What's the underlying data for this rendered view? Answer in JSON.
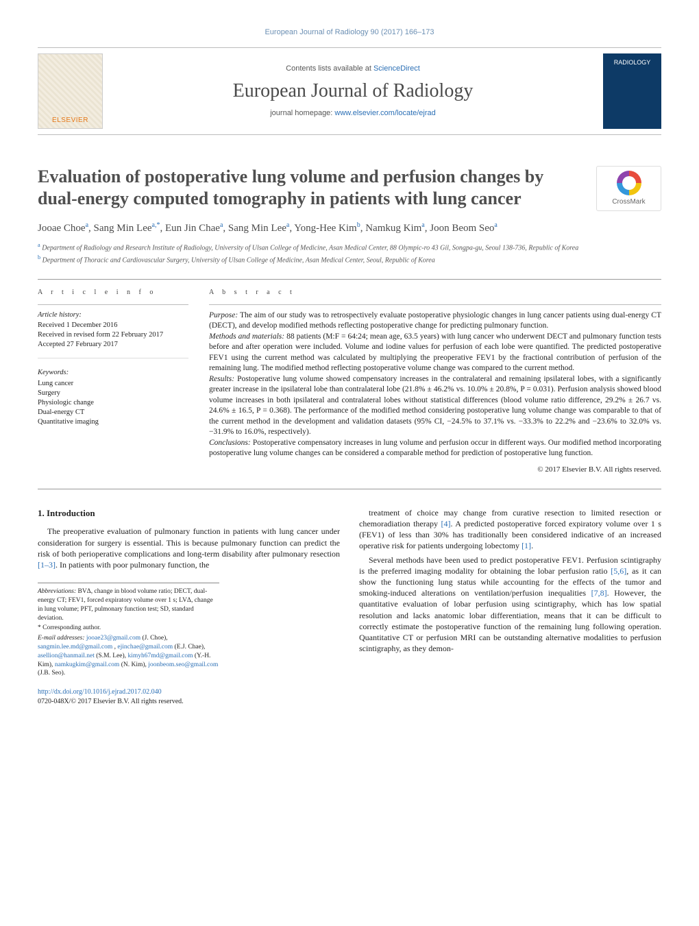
{
  "running_head": "European Journal of Radiology 90 (2017) 166–173",
  "masthead": {
    "publisher_logo_label": "ELSEVIER",
    "contents_prefix": "Contents lists available at ",
    "contents_link": "ScienceDirect",
    "journal_name": "European Journal of Radiology",
    "homepage_prefix": "journal homepage: ",
    "homepage_link": "www.elsevier.com/locate/ejrad",
    "cover_label": "RADIOLOGY"
  },
  "crossmark_label": "CrossMark",
  "title": "Evaluation of postoperative lung volume and perfusion changes by dual-energy computed tomography in patients with lung cancer",
  "authors_html": "Jooae Choe<sup>a</sup>, Sang Min Lee<sup>a,*</sup>, Eun Jin Chae<sup>a</sup>, Sang Min Lee<sup>a</sup>, Yong-Hee Kim<sup>b</sup>, Namkug Kim<sup>a</sup>, Joon Beom Seo<sup>a</sup>",
  "affiliations": [
    {
      "sup": "a",
      "text": "Department of Radiology and Research Institute of Radiology, University of Ulsan College of Medicine, Asan Medical Center, 88 Olympic-ro 43 Gil, Songpa-gu, Seoul 138-736, Republic of Korea"
    },
    {
      "sup": "b",
      "text": "Department of Thoracic and Cardiovascular Surgery, University of Ulsan College of Medicine, Asan Medical Center, Seoul, Republic of Korea"
    }
  ],
  "article_info": {
    "heading": "a r t i c l e   i n f o",
    "history_head": "Article history:",
    "history": [
      "Received 1 December 2016",
      "Received in revised form 22 February 2017",
      "Accepted 27 February 2017"
    ],
    "keywords_head": "Keywords:",
    "keywords": [
      "Lung cancer",
      "Surgery",
      "Physiologic change",
      "Dual-energy CT",
      "Quantitative imaging"
    ]
  },
  "abstract": {
    "heading": "a b s t r a c t",
    "paragraphs": [
      {
        "label": "Purpose:",
        "text": "The aim of our study was to retrospectively evaluate postoperative physiologic changes in lung cancer patients using dual-energy CT (DECT), and develop modified methods reflecting postoperative change for predicting pulmonary function."
      },
      {
        "label": "Methods and materials:",
        "text": "88 patients (M:F = 64:24; mean age, 63.5 years) with lung cancer who underwent DECT and pulmonary function tests before and after operation were included. Volume and iodine values for perfusion of each lobe were quantified. The predicted postoperative FEV1 using the current method was calculated by multiplying the preoperative FEV1 by the fractional contribution of perfusion of the remaining lung. The modified method reflecting postoperative volume change was compared to the current method."
      },
      {
        "label": "Results:",
        "text": "Postoperative lung volume showed compensatory increases in the contralateral and remaining ipsilateral lobes, with a significantly greater increase in the ipsilateral lobe than contralateral lobe (21.8% ± 46.2% vs. 10.0% ± 20.8%, P = 0.031). Perfusion analysis showed blood volume increases in both ipsilateral and contralateral lobes without statistical differences (blood volume ratio difference, 29.2% ± 26.7 vs. 24.6% ± 16.5, P = 0.368). The performance of the modified method considering postoperative lung volume change was comparable to that of the current method in the development and validation datasets (95% CI, −24.5% to 37.1% vs. −33.3% to 22.2% and −23.6% to 32.0% vs. −31.9% to 16.0%, respectively)."
      },
      {
        "label": "Conclusions:",
        "text": "Postoperative compensatory increases in lung volume and perfusion occur in different ways. Our modified method incorporating postoperative lung volume changes can be considered a comparable method for prediction of postoperative lung function."
      }
    ],
    "copyright": "© 2017 Elsevier B.V. All rights reserved."
  },
  "intro": {
    "heading": "1. Introduction",
    "col1": "The preoperative evaluation of pulmonary function in patients with lung cancer under consideration for surgery is essential. This is because pulmonary function can predict the risk of both perioperative complications and long-term disability after pulmonary resection [1–3]. In patients with poor pulmonary function, the",
    "col2a": "treatment of choice may change from curative resection to limited resection or chemoradiation therapy [4]. A predicted postoperative forced expiratory volume over 1 s (FEV1) of less than 30% has traditionally been considered indicative of an increased operative risk for patients undergoing lobectomy [1].",
    "col2b": "Several methods have been used to predict postoperative FEV1. Perfusion scintigraphy is the preferred imaging modality for obtaining the lobar perfusion ratio [5,6], as it can show the functioning lung status while accounting for the effects of the tumor and smoking-induced alterations on ventilation/perfusion inequalities [7,8]. However, the quantitative evaluation of lobar perfusion using scintigraphy, which has low spatial resolution and lacks anatomic lobar differentiation, means that it can be difficult to correctly estimate the postoperative function of the remaining lung following operation. Quantitative CT or perfusion MRI can be outstanding alternative modalities to perfusion scintigraphy, as they demon-"
  },
  "footnotes": {
    "abbrev_label": "Abbreviations:",
    "abbrev_text": "BVΔ, change in blood volume ratio; DECT, dual-energy CT; FEV1, forced expiratory volume over 1 s; LVΔ, change in lung volume; PFT, pulmonary function test; SD, standard deviation.",
    "corr_label": "* Corresponding author.",
    "email_label": "E-mail addresses:",
    "emails": [
      {
        "addr": "jooae23@gmail.com",
        "who": "(J. Choe)"
      },
      {
        "addr": "sangmin.lee.md@gmail.com",
        "who": ""
      },
      {
        "addr": "ejinchae@gmail.com",
        "who": "(E.J. Chae)"
      },
      {
        "addr": "asellion@hanmail.net",
        "who": "(S.M. Lee)"
      },
      {
        "addr": "kimyh67md@gmail.com",
        "who": "(Y.-H. Kim)"
      },
      {
        "addr": "namkugkim@gmail.com",
        "who": "(N. Kim)"
      },
      {
        "addr": "joonbeom.seo@gmail.com",
        "who": "(J.B. Seo)."
      }
    ]
  },
  "doi": {
    "url": "http://dx.doi.org/10.1016/j.ejrad.2017.02.040",
    "issn_line": "0720-048X/© 2017 Elsevier B.V. All rights reserved."
  },
  "colors": {
    "link": "#2b6fb5",
    "accent_orange": "#e67817",
    "cover_bg": "#0d3a66",
    "text_muted": "#555555"
  }
}
